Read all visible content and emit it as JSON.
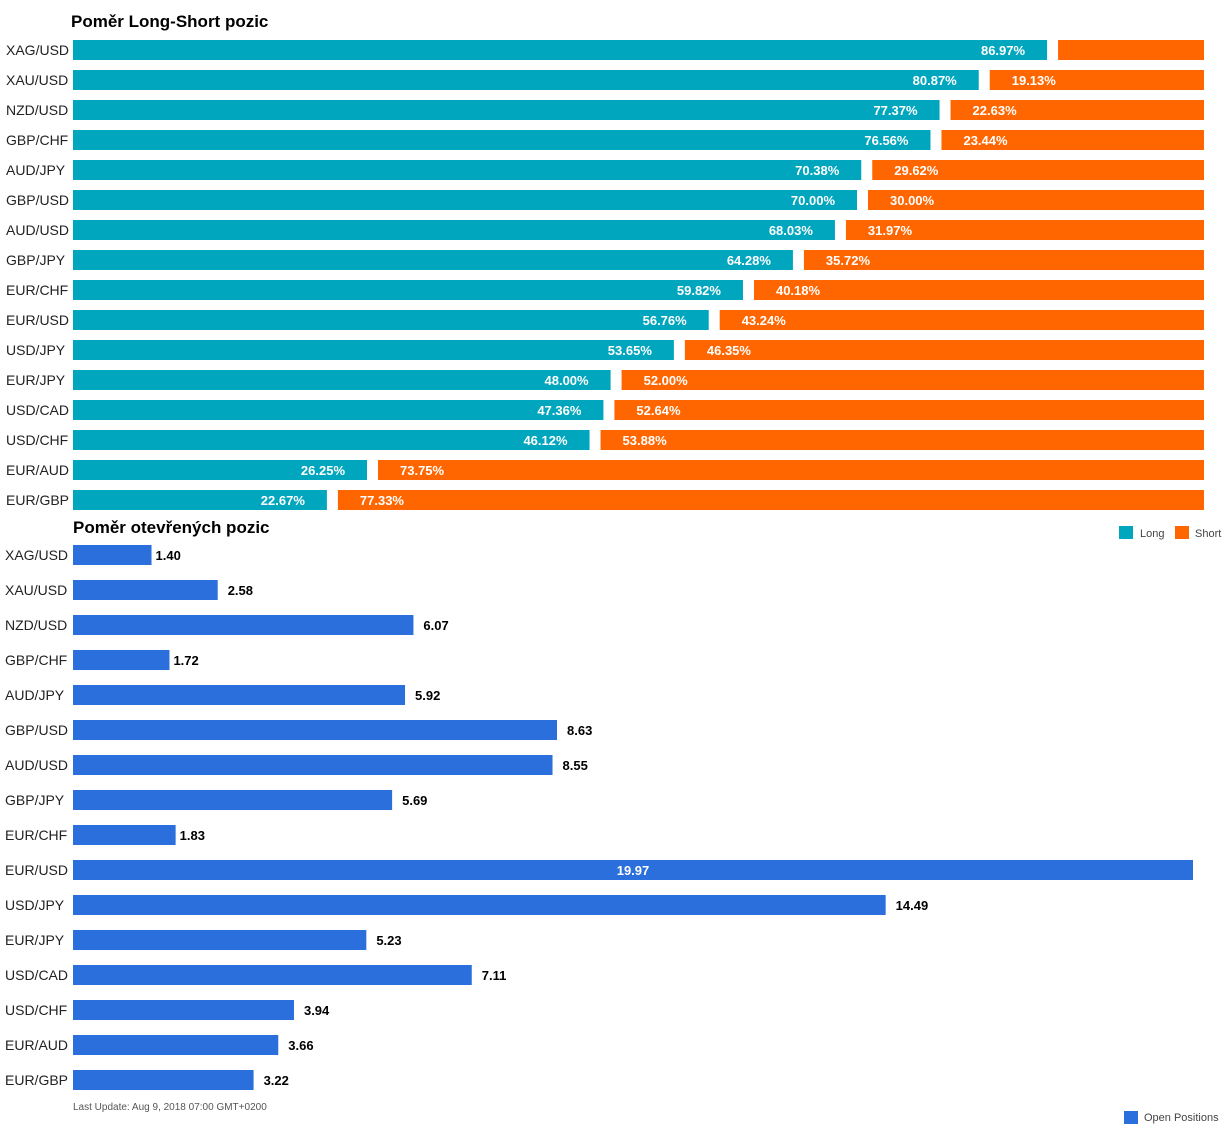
{
  "chart_data": [
    {
      "type": "bar",
      "orientation": "horizontal",
      "stacked": true,
      "title": "Poměr Long-Short pozic",
      "categories": [
        "XAG/USD",
        "XAU/USD",
        "NZD/USD",
        "GBP/CHF",
        "AUD/JPY",
        "GBP/USD",
        "AUD/USD",
        "GBP/JPY",
        "EUR/CHF",
        "EUR/USD",
        "USD/JPY",
        "EUR/JPY",
        "USD/CAD",
        "USD/CHF",
        "EUR/AUD",
        "EUR/GBP"
      ],
      "series": [
        {
          "name": "Long",
          "color": "#00a6bd",
          "values": [
            86.97,
            80.87,
            77.37,
            76.56,
            70.38,
            70.0,
            68.03,
            64.28,
            59.82,
            56.76,
            53.65,
            48.0,
            47.36,
            46.12,
            26.25,
            22.67
          ],
          "labels": [
            "86.97%",
            "80.87%",
            "77.37%",
            "76.56%",
            "70.38%",
            "70.00%",
            "68.03%",
            "64.28%",
            "59.82%",
            "56.76%",
            "53.65%",
            "48.00%",
            "47.36%",
            "46.12%",
            "26.25%",
            "22.67%"
          ]
        },
        {
          "name": "Short",
          "color": "#ff6600",
          "values": [
            13.03,
            19.13,
            22.63,
            23.44,
            29.62,
            30.0,
            31.97,
            35.72,
            40.18,
            43.24,
            46.35,
            52.0,
            52.64,
            53.88,
            73.75,
            77.33
          ],
          "labels": [
            "",
            "19.13%",
            "22.63%",
            "23.44%",
            "29.62%",
            "30.00%",
            "31.97%",
            "35.72%",
            "40.18%",
            "43.24%",
            "46.35%",
            "52.00%",
            "52.64%",
            "53.88%",
            "73.75%",
            "77.33%"
          ]
        }
      ],
      "xlim": [
        0,
        100
      ],
      "legend": "bottom-right",
      "grid": false
    },
    {
      "type": "bar",
      "orientation": "horizontal",
      "title": "Poměr otevřených pozic",
      "categories": [
        "XAG/USD",
        "XAU/USD",
        "NZD/USD",
        "GBP/CHF",
        "AUD/JPY",
        "GBP/USD",
        "AUD/USD",
        "GBP/JPY",
        "EUR/CHF",
        "EUR/USD",
        "USD/JPY",
        "EUR/JPY",
        "USD/CAD",
        "USD/CHF",
        "EUR/AUD",
        "EUR/GBP"
      ],
      "series": [
        {
          "name": "Open Positions",
          "color": "#2a6fdb",
          "values": [
            1.4,
            2.58,
            6.07,
            1.72,
            5.92,
            8.63,
            8.55,
            5.69,
            1.83,
            19.97,
            14.49,
            5.23,
            7.11,
            3.94,
            3.66,
            3.22
          ],
          "labels": [
            "1.40",
            "2.58",
            "6.07",
            "1.72",
            "5.92",
            "8.63",
            "8.55",
            "5.69",
            "1.83",
            "19.97",
            "14.49",
            "5.23",
            "7.11",
            "3.94",
            "3.66",
            "3.22"
          ]
        }
      ],
      "xlim": [
        0,
        19.97
      ],
      "legend": "bottom-right",
      "grid": false,
      "footnote": "Last Update: Aug 9, 2018 07:00 GMT+0200"
    }
  ]
}
